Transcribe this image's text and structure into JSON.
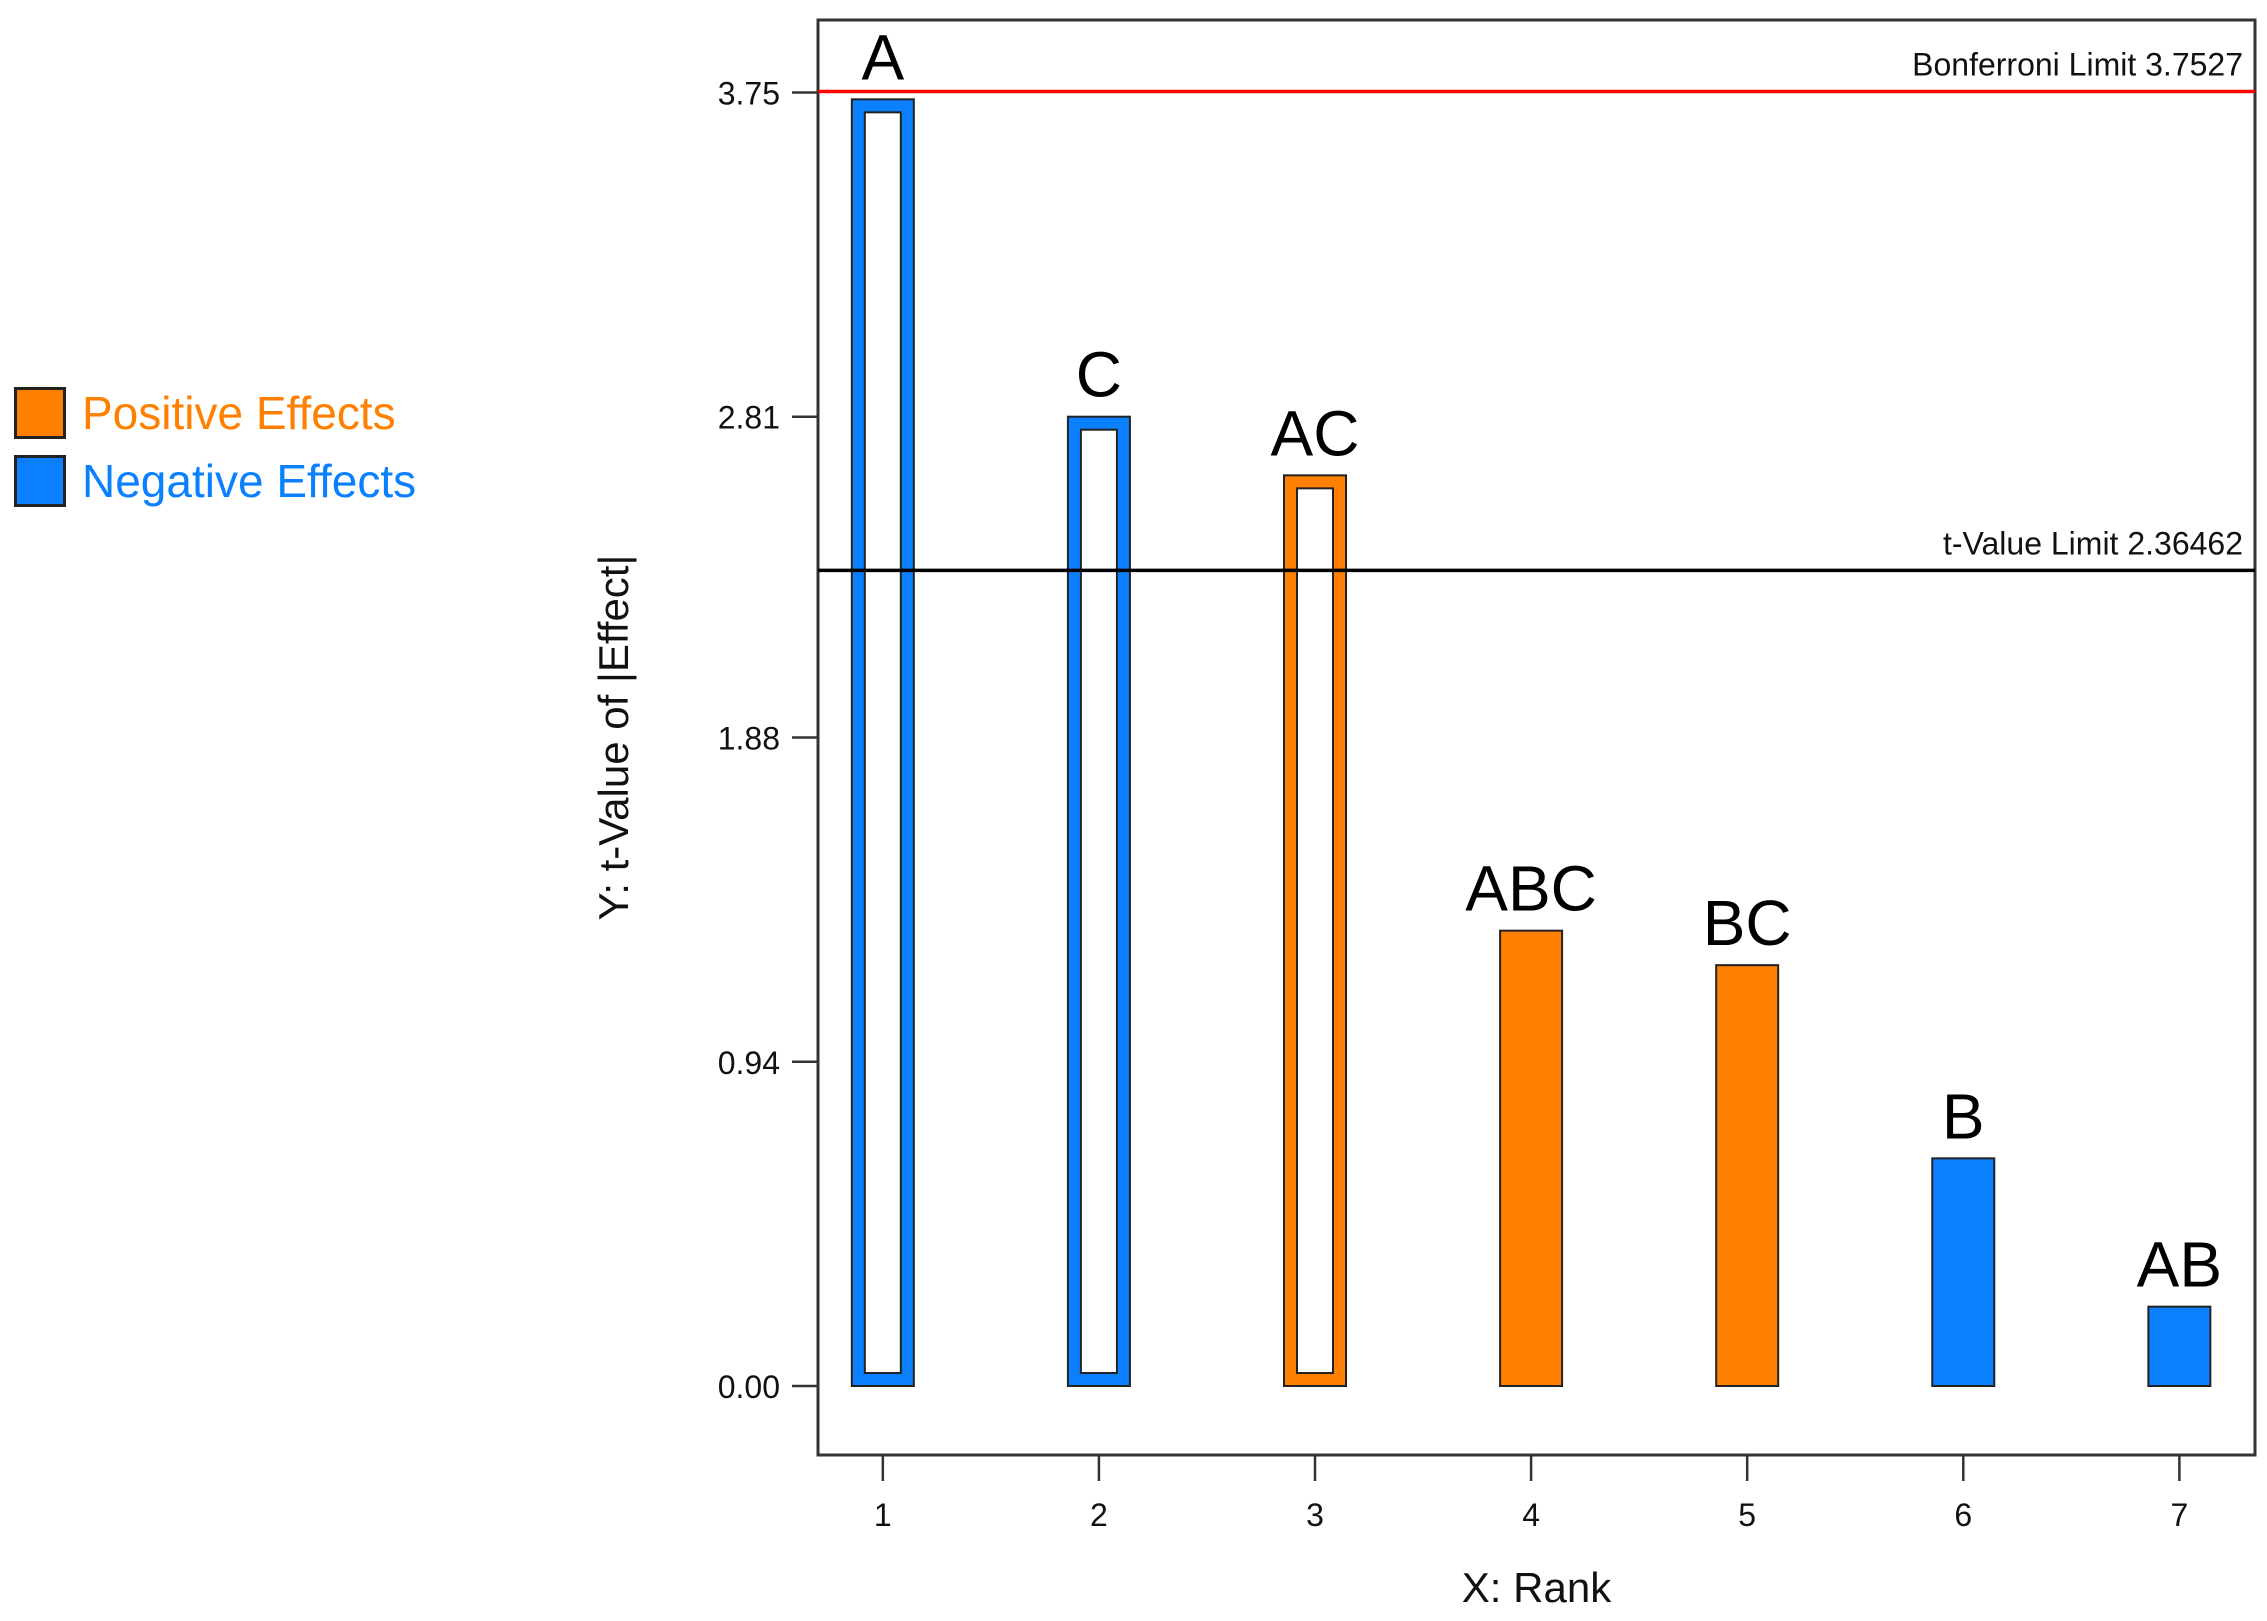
{
  "chart_data": {
    "type": "bar",
    "title": "",
    "xlabel": "X: Rank",
    "ylabel": "Y: t-Value of |Effect|",
    "categories": [
      "1",
      "2",
      "3",
      "4",
      "5",
      "6",
      "7"
    ],
    "yticks": [
      "0.00",
      "0.94",
      "1.88",
      "2.81",
      "3.75"
    ],
    "ytick_values": [
      0,
      0.94,
      1.88,
      2.81,
      3.75
    ],
    "ylim": [
      -0.2,
      3.96
    ],
    "xlim": [
      0.7,
      7.35
    ],
    "bars": [
      {
        "rank": 1,
        "term": "A",
        "value": 3.73,
        "effect": "negative",
        "significant": true
      },
      {
        "rank": 2,
        "term": "C",
        "value": 2.81,
        "effect": "negative",
        "significant": true
      },
      {
        "rank": 3,
        "term": "AC",
        "value": 2.64,
        "effect": "positive",
        "significant": true
      },
      {
        "rank": 4,
        "term": "ABC",
        "value": 1.32,
        "effect": "positive",
        "significant": false
      },
      {
        "rank": 5,
        "term": "BC",
        "value": 1.22,
        "effect": "positive",
        "significant": false
      },
      {
        "rank": 6,
        "term": "B",
        "value": 0.66,
        "effect": "negative",
        "significant": false
      },
      {
        "rank": 7,
        "term": "AB",
        "value": 0.23,
        "effect": "negative",
        "significant": false
      }
    ],
    "reference_lines": [
      {
        "name": "bonferroni",
        "label": "Bonferroni Limit 3.7527",
        "value": 3.7527,
        "color": "#ff0000"
      },
      {
        "name": "t-value",
        "label": "t-Value Limit 2.36462",
        "value": 2.36462,
        "color": "#000000"
      }
    ],
    "legend": [
      {
        "name": "positive",
        "label": "Positive Effects",
        "color": "#ff7f00"
      },
      {
        "name": "negative",
        "label": "Negative Effects",
        "color": "#0a80ff"
      }
    ]
  }
}
